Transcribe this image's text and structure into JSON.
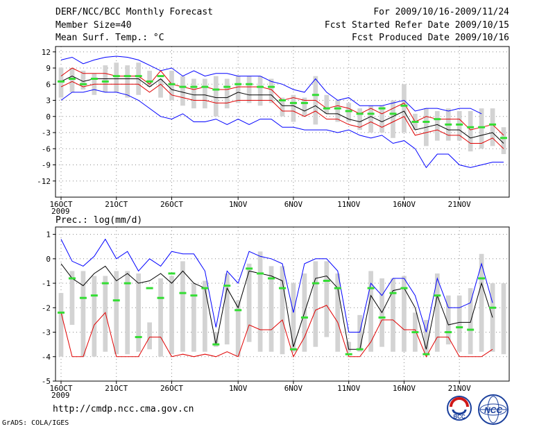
{
  "header": {
    "title": "DERF/NCC/BCC Monthly Forecast",
    "member_size": "Member Size=40",
    "variable": "Mean Surf. Temp.: °C",
    "period": "For 2009/10/16-2009/11/24",
    "fcst_started": "Fcst Started Refer Date 2009/10/15",
    "fcst_produced": "Fcst Produced Date 2009/10/16"
  },
  "footer": {
    "url": "http://cmdp.ncc.cma.gov.cn",
    "grads_label": "GrADS: COLA/IGES",
    "logo_bcc_text": "BCC",
    "logo_ncc_text": "NCC"
  },
  "colors": {
    "box": "#d3d3d3",
    "ens_mean": "#000000",
    "envelope": "#0000ff",
    "inner_band": "#e00000",
    "climatology": "#33dd33",
    "grid": "#888888"
  },
  "chart_data": [
    {
      "type": "line",
      "name": "temperature",
      "title": "",
      "ylabel": "Mean Surf. Temp.: °C",
      "ylim": [
        -15,
        13
      ],
      "yticks": [
        12,
        9,
        6,
        3,
        0,
        -3,
        -6,
        -9,
        -12
      ],
      "ytick_labels": [
        "12",
        "9",
        "6",
        "3",
        "0",
        "-3",
        "-6",
        "-9",
        "-12"
      ],
      "xlim": [
        0,
        40
      ],
      "xticks": [
        0,
        5,
        10,
        16,
        21,
        26,
        31,
        36
      ],
      "xtick_labels": [
        "16OCT",
        "21OCT",
        "26OCT",
        "1NOV",
        "6NOV",
        "11NOV",
        "16NOV",
        "21NOV"
      ],
      "year_label": "2009",
      "box_low": [
        3.5,
        4.5,
        5.0,
        4.0,
        4.5,
        4.5,
        3.5,
        4.0,
        5.5,
        3.5,
        3.0,
        2.0,
        1.5,
        1.5,
        0.0,
        1.5,
        2.5,
        2.5,
        2.0,
        2.5,
        0.0,
        -1.0,
        0.0,
        -1.5,
        0.5,
        -1.0,
        -1.0,
        -2.5,
        -3.0,
        -3.0,
        -4.0,
        -3.0,
        -2.5,
        -5.5,
        -4.5,
        -4.5,
        -4.5,
        -6.5,
        -6.0,
        -5.5,
        -7.0
      ],
      "box_high": [
        9.0,
        9.0,
        8.5,
        8.0,
        9.5,
        10.0,
        9.5,
        10.0,
        8.5,
        7.0,
        8.5,
        7.5,
        7.0,
        7.0,
        7.5,
        7.0,
        7.5,
        7.5,
        7.5,
        7.0,
        3.5,
        4.0,
        3.5,
        7.5,
        4.0,
        3.0,
        2.5,
        1.5,
        2.0,
        2.0,
        3.0,
        6.0,
        0.5,
        1.5,
        1.0,
        1.5,
        1.0,
        1.0,
        1.5,
        1.5,
        -2.0
      ],
      "series": [
        {
          "name": "envelope_max",
          "values": [
            10.5,
            11.0,
            9.8,
            10.5,
            11.0,
            11.2,
            11.0,
            10.5,
            9.5,
            8.5,
            9.0,
            7.5,
            8.5,
            7.5,
            8.0,
            8.0,
            7.5,
            7.5,
            7.5,
            6.5,
            6.0,
            5.0,
            4.5,
            7.0,
            4.5,
            3.0,
            3.5,
            2.0,
            2.0,
            2.0,
            2.5,
            3.0,
            1.0,
            1.5,
            1.5,
            1.0,
            1.5,
            1.5,
            0.5,
            null,
            null
          ]
        },
        {
          "name": "band_upper",
          "values": [
            7.5,
            9.0,
            8.0,
            8.0,
            8.0,
            7.5,
            7.5,
            7.5,
            6.0,
            8.5,
            6.0,
            5.5,
            5.0,
            5.5,
            5.0,
            5.0,
            5.5,
            5.5,
            5.5,
            5.0,
            3.0,
            3.5,
            3.0,
            3.0,
            1.5,
            2.0,
            1.5,
            0.5,
            1.5,
            0.5,
            1.5,
            2.5,
            -1.0,
            0.0,
            -0.5,
            -0.5,
            -0.5,
            -2.5,
            -2.0,
            -1.5,
            -3.5
          ]
        },
        {
          "name": "ens_mean",
          "values": [
            6.5,
            7.5,
            6.5,
            7.0,
            7.0,
            7.0,
            7.0,
            7.0,
            5.5,
            7.0,
            5.0,
            4.5,
            4.0,
            4.0,
            3.5,
            3.5,
            4.5,
            4.0,
            4.0,
            4.0,
            2.0,
            2.0,
            1.0,
            2.0,
            0.5,
            0.5,
            -0.5,
            -1.0,
            0.0,
            -1.0,
            0.0,
            1.0,
            -2.5,
            -2.0,
            -1.5,
            -2.5,
            -2.5,
            -4.0,
            -3.5,
            -3.0,
            -5.0
          ]
        },
        {
          "name": "band_lower",
          "values": [
            5.5,
            6.5,
            5.5,
            6.0,
            6.0,
            6.0,
            6.0,
            6.0,
            4.5,
            6.0,
            4.0,
            3.5,
            3.0,
            3.0,
            2.5,
            2.5,
            3.0,
            3.0,
            3.0,
            3.0,
            1.0,
            1.0,
            0.0,
            1.0,
            -0.5,
            -0.5,
            -1.5,
            -2.0,
            -1.0,
            -2.0,
            -1.0,
            0.0,
            -3.5,
            -3.0,
            -2.5,
            -3.5,
            -3.5,
            -5.0,
            -5.0,
            -4.0,
            -6.0
          ]
        },
        {
          "name": "envelope_min",
          "values": [
            3.0,
            4.5,
            4.5,
            5.0,
            4.5,
            4.5,
            4.0,
            3.0,
            1.5,
            0.0,
            -0.5,
            0.5,
            -1.0,
            -1.0,
            -0.5,
            -1.5,
            -0.5,
            -1.5,
            -0.5,
            -0.5,
            -2.0,
            -2.0,
            -2.5,
            -2.5,
            -2.5,
            -3.0,
            -2.5,
            -3.5,
            -4.0,
            -3.5,
            -5.0,
            -4.5,
            -6.0,
            -9.5,
            -7.0,
            -7.0,
            -9.0,
            -9.5,
            -9.0,
            -8.5,
            -8.5
          ]
        },
        {
          "name": "climatology",
          "values": [
            6.5,
            7.0,
            6.0,
            7.0,
            6.5,
            7.5,
            7.5,
            7.5,
            6.5,
            7.5,
            6.0,
            5.5,
            5.5,
            5.5,
            5.0,
            5.5,
            6.0,
            6.0,
            5.5,
            5.5,
            3.0,
            2.5,
            2.5,
            4.0,
            1.5,
            1.5,
            1.0,
            0.5,
            0.5,
            1.5,
            0.5,
            2.0,
            -1.0,
            -1.0,
            -0.5,
            -1.5,
            -1.5,
            -2.0,
            -2.0,
            -1.5,
            -4.0
          ]
        }
      ]
    },
    {
      "type": "line",
      "name": "precipitation",
      "title": "Prec.: log(mm/d)",
      "ylim": [
        -5,
        1.3
      ],
      "yticks": [
        1,
        0,
        -1,
        -2,
        -3,
        -4,
        -5
      ],
      "ytick_labels": [
        "1",
        "0",
        "-1",
        "-2",
        "-3",
        "-4",
        "-5"
      ],
      "xlim": [
        0,
        40
      ],
      "xticks": [
        0,
        5,
        10,
        16,
        21,
        26,
        31,
        36
      ],
      "xtick_labels": [
        "16OCT",
        "21OCT",
        "26OCT",
        "1NOV",
        "6NOV",
        "11NOV",
        "16NOV",
        "21NOV"
      ],
      "year_label": "2009",
      "box_low": [
        -4.0,
        -2.7,
        -4.0,
        -4.0,
        -3.8,
        -3.9,
        -3.9,
        -3.8,
        -3.7,
        -4.0,
        -3.9,
        -3.8,
        -3.8,
        -3.8,
        -3.6,
        -3.5,
        -4.0,
        -3.4,
        -3.8,
        -3.8,
        -3.9,
        -3.8,
        -3.8,
        -3.6,
        -3.2,
        -3.8,
        -3.8,
        -3.8,
        -3.8,
        -3.6,
        -3.8,
        -3.8,
        -3.8,
        -3.9,
        -3.8,
        -3.5,
        -3.8,
        -3.9,
        -3.8,
        -3.8,
        -3.9
      ],
      "box_high": [
        -1.4,
        -0.5,
        -0.5,
        -0.7,
        -0.7,
        -0.5,
        -0.5,
        -0.6,
        -2.6,
        -0.8,
        -0.7,
        -0.1,
        -1.0,
        -0.9,
        -3.0,
        -0.6,
        -1.7,
        -0.2,
        0.3,
        -0.3,
        -0.3,
        -1.0,
        -0.6,
        -0.1,
        -0.1,
        -0.6,
        -3.4,
        -2.3,
        -0.5,
        -0.8,
        -0.8,
        -0.7,
        -2.2,
        -2.5,
        -0.6,
        -1.5,
        -1.5,
        -1.2,
        0.2,
        -1.0,
        -1.0
      ],
      "series": [
        {
          "name": "envelope_max",
          "values": [
            0.8,
            -0.1,
            -0.3,
            0.1,
            0.8,
            0.0,
            0.3,
            -0.5,
            0.0,
            -0.3,
            0.3,
            0.2,
            0.2,
            -0.5,
            -2.8,
            -0.5,
            -1.0,
            0.3,
            0.1,
            0.0,
            -0.2,
            -2.2,
            -0.2,
            0.0,
            0.0,
            -0.5,
            -3.0,
            -3.0,
            -1.0,
            -1.5,
            -0.8,
            -0.8,
            -1.5,
            -3.0,
            -0.8,
            -2.0,
            -2.0,
            -1.8,
            -0.2,
            -1.8,
            null
          ]
        },
        {
          "name": "ens_mean",
          "values": [
            -0.2,
            -0.8,
            -1.1,
            -0.6,
            -0.3,
            -0.9,
            -0.6,
            -1.0,
            -0.9,
            -0.6,
            -1.0,
            -0.5,
            -1.0,
            -1.2,
            -3.5,
            -1.2,
            -2.0,
            -0.5,
            -0.6,
            -0.7,
            -0.9,
            -3.6,
            -2.2,
            -0.8,
            -0.7,
            -1.2,
            -3.7,
            -3.7,
            -1.5,
            -2.2,
            -1.3,
            -1.2,
            -2.0,
            -3.7,
            -1.5,
            -2.7,
            -2.6,
            -2.6,
            -1.0,
            -2.4,
            null
          ]
        },
        {
          "name": "band_lower",
          "values": [
            -2.2,
            -4.0,
            -4.0,
            -2.7,
            -2.2,
            -4.0,
            -4.0,
            -4.0,
            -3.2,
            -3.2,
            -4.0,
            -3.9,
            -4.0,
            -3.9,
            -4.0,
            -3.8,
            -4.0,
            -2.7,
            -2.9,
            -2.9,
            -2.5,
            -4.0,
            -3.2,
            -2.1,
            -1.9,
            -2.6,
            -4.0,
            -4.0,
            -3.4,
            -2.5,
            -2.5,
            -2.9,
            -2.9,
            -4.0,
            -3.2,
            -3.2,
            -4.0,
            -4.0,
            -4.0,
            -3.7,
            null
          ]
        },
        {
          "name": "climatology",
          "values": [
            -2.2,
            -0.8,
            -1.6,
            -1.5,
            -1.0,
            -1.7,
            -1.0,
            -3.2,
            -1.2,
            -1.6,
            -0.6,
            -1.4,
            -1.5,
            -1.2,
            -3.5,
            -1.1,
            -2.1,
            -0.4,
            -0.6,
            -0.8,
            -1.2,
            -3.7,
            -2.4,
            -1.0,
            -0.9,
            -1.2,
            -3.9,
            -3.7,
            -1.2,
            -2.4,
            -1.4,
            -1.2,
            -3.0,
            -3.9,
            -1.5,
            -3.0,
            -2.8,
            -2.9,
            -0.8,
            -2.0,
            null
          ]
        }
      ]
    }
  ]
}
